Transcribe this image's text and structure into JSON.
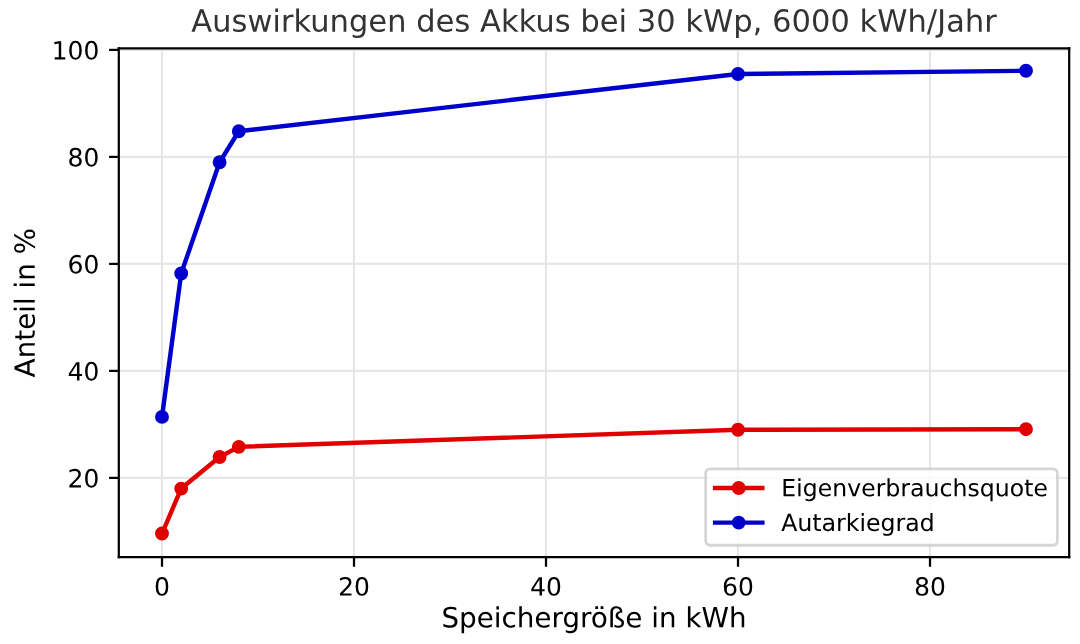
{
  "chart_data": {
    "type": "line",
    "title": "Auswirkungen des Akkus bei 30 kWp, 6000 kWh/Jahr",
    "xlabel": "Speichergröße in kWh",
    "ylabel": "Anteil in %",
    "x": [
      0,
      2,
      6,
      8,
      60,
      90
    ],
    "series": [
      {
        "name": "Eigenverbrauchsquote",
        "color": "#e00000",
        "values": [
          9.6,
          18,
          23.9,
          25.8,
          29,
          29.1
        ]
      },
      {
        "name": "Autarkiegrad",
        "color": "#0000cc",
        "values": [
          31.4,
          58.2,
          79,
          84.8,
          95.5,
          96.1
        ]
      }
    ],
    "xlim": [
      -4.5,
      94.5
    ],
    "ylim": [
      5.2,
      100.3
    ],
    "xticks": [
      0,
      20,
      40,
      60,
      80
    ],
    "yticks": [
      20,
      40,
      60,
      80,
      100
    ],
    "grid": true,
    "legend": "bottom right",
    "marker": "circle",
    "line_style": "solid"
  }
}
